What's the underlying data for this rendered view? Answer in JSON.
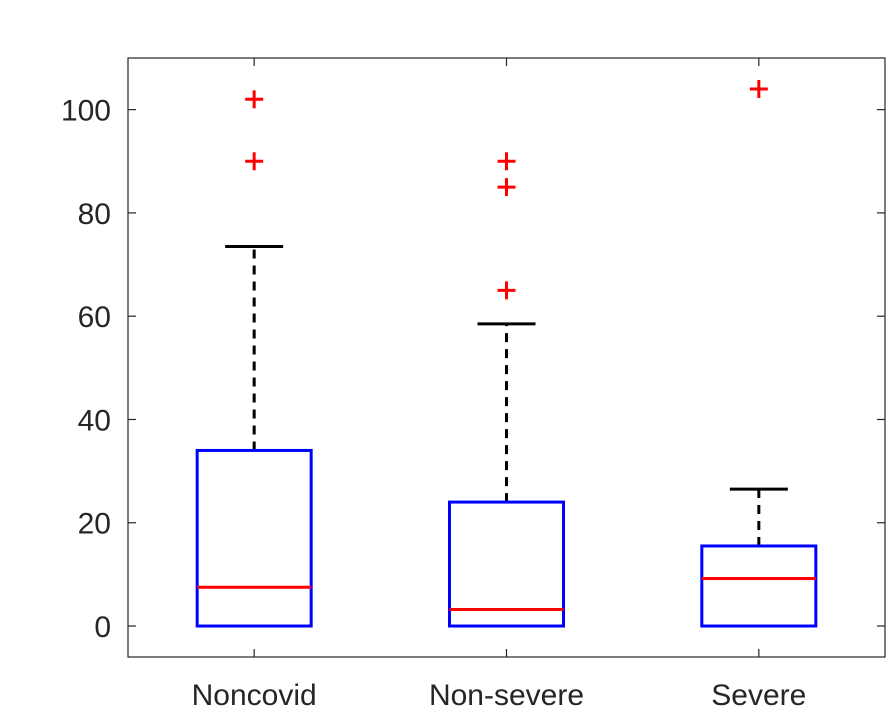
{
  "chart_data": {
    "type": "box",
    "title": "",
    "xlabel": "",
    "ylabel": "",
    "ylim": [
      -6,
      110
    ],
    "yticks": [
      0,
      20,
      40,
      60,
      80,
      100
    ],
    "grid": false,
    "categories": [
      "Noncovid",
      "Non-severe",
      "Severe"
    ],
    "boxes": [
      {
        "q1": 0,
        "median": 7.5,
        "q3": 34,
        "whisker_low": 0,
        "whisker_high": 73.5,
        "outliers": [
          90,
          102
        ]
      },
      {
        "q1": 0,
        "median": 3.2,
        "q3": 24,
        "whisker_low": 0,
        "whisker_high": 58.5,
        "outliers": [
          65,
          85,
          90
        ]
      },
      {
        "q1": 0,
        "median": 9.2,
        "q3": 15.5,
        "whisker_low": 0,
        "whisker_high": 26.5,
        "outliers": [
          104
        ]
      }
    ]
  },
  "colors": {
    "box": "#0000ff",
    "median": "#ff0000",
    "whisker": "#000000",
    "outlier": "#ff0000",
    "axis": "#262626"
  }
}
